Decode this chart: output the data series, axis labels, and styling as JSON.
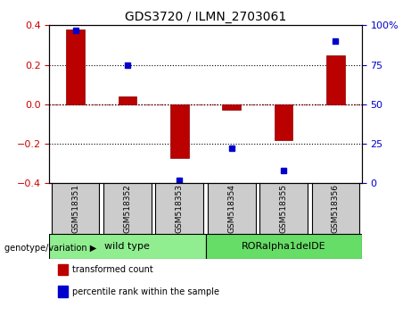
{
  "title": "GDS3720 / ILMN_2703061",
  "samples": [
    "GSM518351",
    "GSM518352",
    "GSM518353",
    "GSM518354",
    "GSM518355",
    "GSM518356"
  ],
  "bar_values": [
    0.38,
    0.04,
    -0.27,
    -0.03,
    -0.18,
    0.25
  ],
  "dot_values_pct": [
    97,
    75,
    2,
    22,
    8,
    90
  ],
  "bar_color": "#bb0000",
  "dot_color": "#0000cc",
  "ylim": [
    -0.4,
    0.4
  ],
  "y2lim": [
    0,
    100
  ],
  "yticks": [
    -0.4,
    -0.2,
    0.0,
    0.2,
    0.4
  ],
  "y2ticks": [
    0,
    25,
    50,
    75,
    100
  ],
  "y2ticklabels": [
    "0",
    "25",
    "50",
    "75",
    "100%"
  ],
  "groups": [
    {
      "label": "wild type",
      "indices": [
        0,
        1,
        2
      ],
      "color": "#90ee90"
    },
    {
      "label": "RORalpha1delDE",
      "indices": [
        3,
        4,
        5
      ],
      "color": "#66dd66"
    }
  ],
  "group_label": "genotype/variation",
  "legend_items": [
    {
      "label": "transformed count",
      "color": "#bb0000"
    },
    {
      "label": "percentile rank within the sample",
      "color": "#0000cc"
    }
  ],
  "bar_width": 0.35,
  "zero_line_color": "#cc0000",
  "background_sample_box": "#cccccc",
  "tick_label_color_left": "#cc0000",
  "tick_label_color_right": "#0000cc",
  "bar_edge_color": "#880000"
}
